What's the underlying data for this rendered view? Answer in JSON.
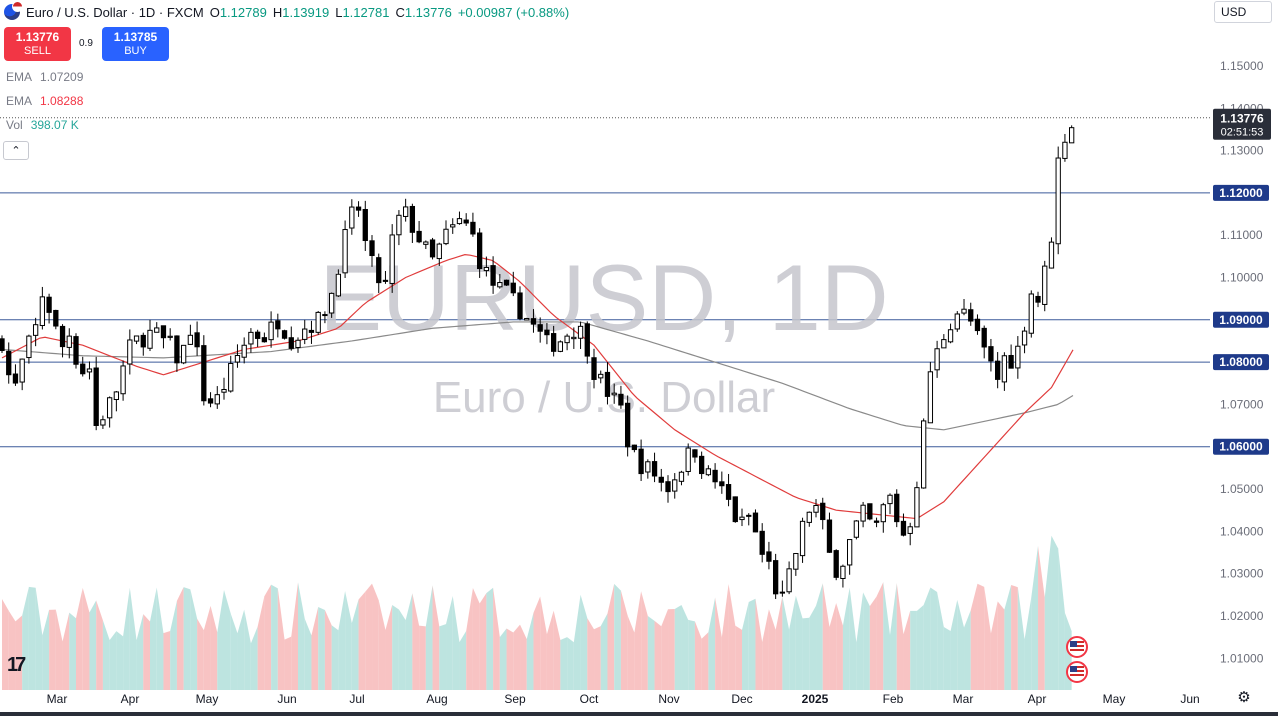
{
  "header": {
    "symbol": "Euro / U.S. Dollar · 1D · FXCM",
    "o_label": "O",
    "o_value": "1.12789",
    "h_label": "H",
    "h_value": "1.13919",
    "l_label": "L",
    "l_value": "1.12781",
    "c_label": "C",
    "c_value": "1.13776",
    "change": "+0.00987 (+0.88%)"
  },
  "trade": {
    "sell_price": "1.13776",
    "sell_label": "SELL",
    "spread": "0.9",
    "buy_price": "1.13785",
    "buy_label": "BUY"
  },
  "indicators": [
    {
      "name": "EMA",
      "value": "1.07209",
      "color": "#787b86"
    },
    {
      "name": "EMA",
      "value": "1.08288",
      "color": "#f23645"
    },
    {
      "name": "Vol",
      "value": "398.07 K",
      "color": "#26a69a"
    }
  ],
  "collapse_icon": "chevron-up-icon",
  "currency": "USD",
  "colors": {
    "up": "#ffffff",
    "down": "#000000",
    "wick": "#000000",
    "ema_fast": "#e03c3c",
    "ema_slow": "#8a8a8a",
    "hline": "#3b5a9a",
    "price_line": "#555555",
    "vol_up": "#b2dfdb",
    "vol_down": "#f7b9b9"
  },
  "chart_data": {
    "type": "candlestick",
    "title": "EURUSD, 1D",
    "subtitle": "Euro / U.S. Dollar",
    "x_ticks": [
      "Mar",
      "Apr",
      "May",
      "Jun",
      "Jul",
      "Aug",
      "Sep",
      "Oct",
      "Nov",
      "Dec",
      "2025",
      "Feb",
      "Mar",
      "Apr",
      "May",
      "Jun"
    ],
    "y_ticks": [
      "1.15000",
      "1.14000",
      "1.13000",
      "1.11000",
      "1.10000",
      "1.07000",
      "1.05000",
      "1.04000",
      "1.03000",
      "1.02000",
      "1.01000"
    ],
    "ylim": [
      1.0025,
      1.1585
    ],
    "horizontal_levels": [
      "1.12000",
      "1.09000",
      "1.08000",
      "1.06000"
    ],
    "last_price": "1.13776",
    "countdown": "02:51:53",
    "price_anchors": [
      [
        0,
        1.085
      ],
      [
        8,
        1.072
      ],
      [
        17,
        1.082
      ],
      [
        25,
        1.088
      ],
      [
        30,
        1.096
      ],
      [
        36,
        1.092
      ],
      [
        44,
        1.083
      ],
      [
        52,
        1.088
      ],
      [
        58,
        1.074
      ],
      [
        63,
        1.084
      ],
      [
        70,
        1.065
      ],
      [
        78,
        1.069
      ],
      [
        86,
        1.074
      ],
      [
        94,
        1.083
      ],
      [
        100,
        1.085
      ],
      [
        112,
        1.087
      ],
      [
        125,
        1.084
      ],
      [
        132,
        1.08
      ],
      [
        140,
        1.088
      ],
      [
        144,
        1.084
      ],
      [
        150,
        1.072
      ],
      [
        158,
        1.07
      ],
      [
        166,
        1.075
      ],
      [
        176,
        1.082
      ],
      [
        185,
        1.087
      ],
      [
        195,
        1.086
      ],
      [
        205,
        1.09
      ],
      [
        216,
        1.085
      ],
      [
        224,
        1.088
      ],
      [
        236,
        1.09
      ],
      [
        244,
        1.095
      ],
      [
        250,
        1.103
      ],
      [
        257,
        1.112
      ],
      [
        264,
        1.118
      ],
      [
        270,
        1.108
      ],
      [
        278,
        1.1
      ],
      [
        285,
        1.098
      ],
      [
        292,
        1.113
      ],
      [
        300,
        1.115
      ],
      [
        312,
        1.108
      ],
      [
        320,
        1.104
      ],
      [
        330,
        1.11
      ],
      [
        340,
        1.113
      ],
      [
        348,
        1.112
      ],
      [
        356,
        1.103
      ],
      [
        366,
        1.098
      ],
      [
        376,
        1.096
      ],
      [
        386,
        1.092
      ],
      [
        396,
        1.088
      ],
      [
        406,
        1.084
      ],
      [
        414,
        1.085
      ],
      [
        424,
        1.088
      ],
      [
        432,
        1.087
      ],
      [
        440,
        1.078
      ],
      [
        450,
        1.073
      ],
      [
        460,
        1.069
      ],
      [
        466,
        1.06
      ],
      [
        474,
        1.056
      ],
      [
        484,
        1.054
      ],
      [
        494,
        1.05
      ],
      [
        504,
        1.055
      ],
      [
        514,
        1.06
      ],
      [
        522,
        1.054
      ],
      [
        530,
        1.052
      ],
      [
        540,
        1.047
      ],
      [
        548,
        1.041
      ],
      [
        556,
        1.044
      ],
      [
        564,
        1.035
      ],
      [
        572,
        1.031
      ],
      [
        578,
        1.022
      ],
      [
        584,
        1.028
      ],
      [
        590,
        1.035
      ],
      [
        596,
        1.042
      ],
      [
        602,
        1.047
      ],
      [
        608,
        1.044
      ],
      [
        614,
        1.035
      ],
      [
        622,
        1.03
      ],
      [
        628,
        1.036
      ],
      [
        636,
        1.042
      ],
      [
        642,
        1.045
      ],
      [
        648,
        1.039
      ],
      [
        654,
        1.045
      ],
      [
        660,
        1.048
      ],
      [
        666,
        1.042
      ],
      [
        672,
        1.038
      ],
      [
        678,
        1.047
      ],
      [
        684,
        1.062
      ],
      [
        690,
        1.078
      ],
      [
        696,
        1.083
      ],
      [
        702,
        1.088
      ],
      [
        710,
        1.092
      ],
      [
        718,
        1.091
      ],
      [
        726,
        1.085
      ],
      [
        734,
        1.08
      ],
      [
        740,
        1.076
      ],
      [
        746,
        1.082
      ],
      [
        752,
        1.08
      ],
      [
        756,
        1.084
      ],
      [
        762,
        1.092
      ],
      [
        766,
        1.098
      ],
      [
        772,
        1.093
      ],
      [
        776,
        1.104
      ],
      [
        780,
        1.11
      ],
      [
        784,
        1.125
      ],
      [
        788,
        1.135
      ],
      [
        792,
        1.132
      ],
      [
        796,
        1.1377
      ]
    ],
    "ema_fast_anchors": [
      [
        0,
        1.081
      ],
      [
        30,
        1.086
      ],
      [
        60,
        1.084
      ],
      [
        100,
        1.079
      ],
      [
        120,
        1.077
      ],
      [
        150,
        1.08
      ],
      [
        180,
        1.083
      ],
      [
        220,
        1.085
      ],
      [
        250,
        1.088
      ],
      [
        270,
        1.094
      ],
      [
        300,
        1.1
      ],
      [
        330,
        1.104
      ],
      [
        345,
        1.1055
      ],
      [
        365,
        1.104
      ],
      [
        385,
        1.099
      ],
      [
        410,
        1.091
      ],
      [
        440,
        1.084
      ],
      [
        470,
        1.072
      ],
      [
        500,
        1.064
      ],
      [
        530,
        1.058
      ],
      [
        560,
        1.053
      ],
      [
        590,
        1.048
      ],
      [
        620,
        1.045
      ],
      [
        650,
        1.044
      ],
      [
        680,
        1.043
      ],
      [
        700,
        1.047
      ],
      [
        720,
        1.054
      ],
      [
        740,
        1.061
      ],
      [
        760,
        1.068
      ],
      [
        780,
        1.074
      ],
      [
        796,
        1.0829
      ]
    ],
    "ema_slow_anchors": [
      [
        0,
        1.083
      ],
      [
        60,
        1.0815
      ],
      [
        120,
        1.081
      ],
      [
        200,
        1.0825
      ],
      [
        260,
        1.085
      ],
      [
        320,
        1.088
      ],
      [
        380,
        1.0895
      ],
      [
        430,
        1.0895
      ],
      [
        480,
        1.085
      ],
      [
        530,
        1.08
      ],
      [
        580,
        1.075
      ],
      [
        630,
        1.069
      ],
      [
        670,
        1.065
      ],
      [
        700,
        1.064
      ],
      [
        730,
        1.066
      ],
      [
        760,
        1.068
      ],
      [
        785,
        1.07
      ],
      [
        796,
        1.0721
      ]
    ],
    "volume_spikes": [
      [
        320,
        0.55
      ],
      [
        580,
        0.52
      ],
      [
        650,
        0.48
      ],
      [
        700,
        0.35
      ],
      [
        770,
        0.8
      ],
      [
        782,
        1.0
      ]
    ]
  }
}
